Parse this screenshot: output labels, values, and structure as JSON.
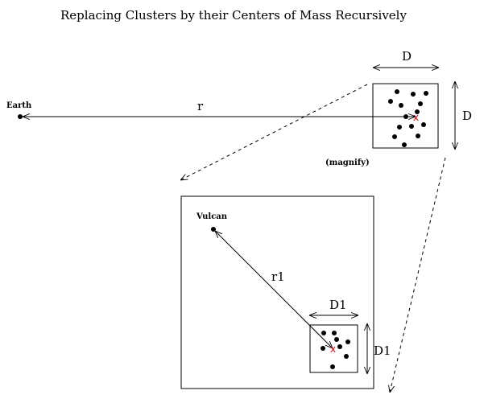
{
  "title": "Replacing Clusters by their Centers of Mass Recursively",
  "top": {
    "earth_label": "Earth",
    "distance_label": "r",
    "width_label": "D",
    "height_label": "D",
    "magnify_label": "(magnify)",
    "center_marker": "x"
  },
  "zoom": {
    "vulcan_label": "Vulcan",
    "distance_label": "r1",
    "width_label": "D1",
    "height_label": "D1",
    "center_marker": "x"
  },
  "colors": {
    "ink": "#000000",
    "center_of_mass": "#e00000"
  }
}
